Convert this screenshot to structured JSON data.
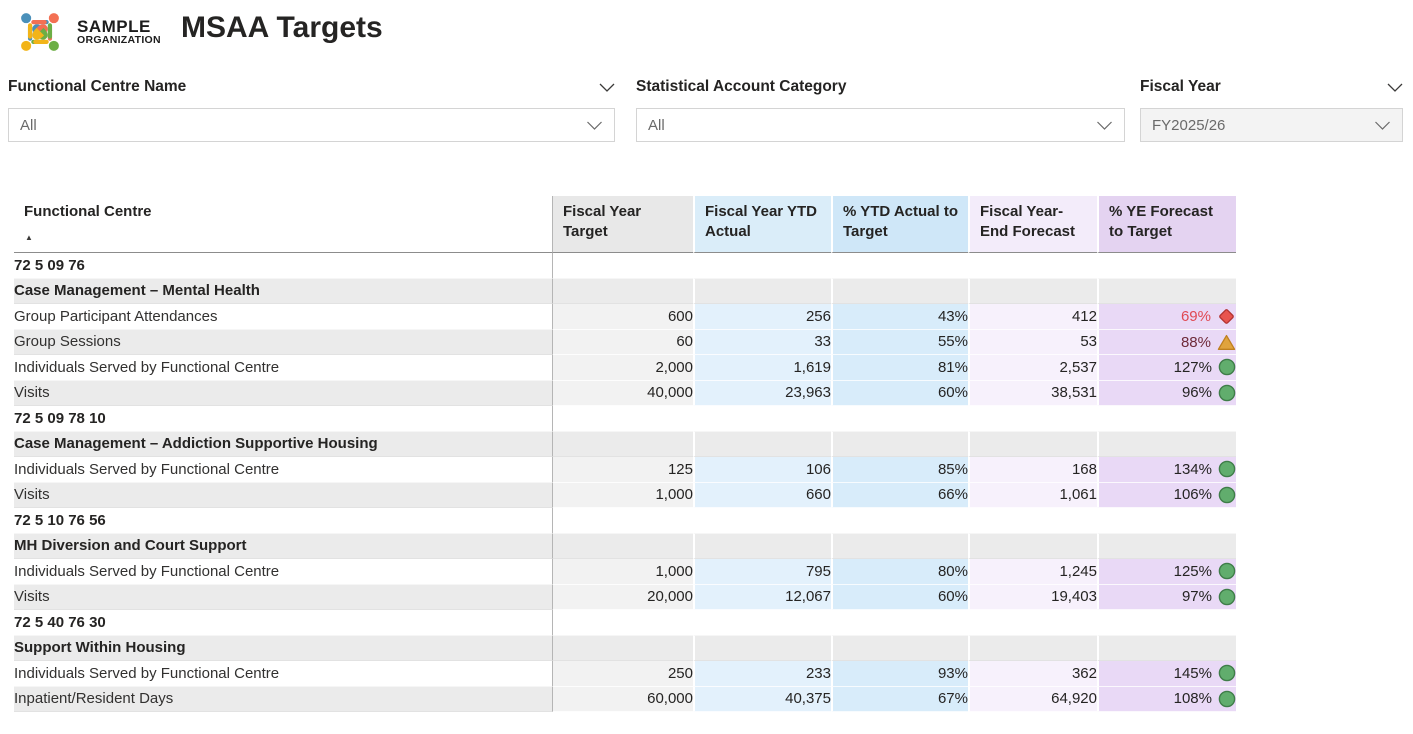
{
  "header": {
    "logo": {
      "line1": "SAMPLE",
      "line2": "ORGANIZATION"
    },
    "title": "MSAA Targets"
  },
  "filters": [
    {
      "label": "Functional Centre Name",
      "value": "All",
      "label_chevron": true,
      "selected": false
    },
    {
      "label": "Statistical Account Category",
      "value": "All",
      "label_chevron": false,
      "selected": false
    },
    {
      "label": "Fiscal Year",
      "value": "FY2025/26",
      "label_chevron": true,
      "selected": true
    }
  ],
  "table": {
    "sort_icon": "▲",
    "columns": [
      {
        "label": "Functional Centre",
        "header_bg": "#ffffff",
        "cell_bg": ""
      },
      {
        "label": "Fiscal Year Target",
        "header_bg": "#e8e8e8",
        "cell_bg": "#f2f2f2"
      },
      {
        "label": "Fiscal Year YTD Actual",
        "header_bg": "#daedf9",
        "cell_bg": "#e3f1fc"
      },
      {
        "label": "% YTD Actual to Target",
        "header_bg": "#cfe7f8",
        "cell_bg": "#d8ecfa"
      },
      {
        "label": "Fiscal Year-End Forecast",
        "header_bg": "#f3ecfa",
        "cell_bg": "#f7f1fc"
      },
      {
        "label": "% YE Forecast to Target",
        "header_bg": "#e4d3f1",
        "cell_bg": "#e9d9f6"
      }
    ],
    "rows": [
      {
        "level": 1,
        "label": "72 5 09 76"
      },
      {
        "level": 2,
        "label": "Case Management – Mental Health"
      },
      {
        "level": 3,
        "label": "Group Participant Attendances",
        "values": [
          "600",
          "256",
          "43%",
          "412",
          "69%"
        ],
        "kpi": "red-diamond",
        "pct_style": "red"
      },
      {
        "level": 3,
        "label": "Group Sessions",
        "values": [
          "60",
          "33",
          "55%",
          "53",
          "88%"
        ],
        "kpi": "amber-triangle",
        "pct_style": "maroon"
      },
      {
        "level": 3,
        "label": "Individuals Served by Functional Centre",
        "values": [
          "2,000",
          "1,619",
          "81%",
          "2,537",
          "127%"
        ],
        "kpi": "green-circle",
        "pct_style": "default"
      },
      {
        "level": 3,
        "label": "Visits",
        "values": [
          "40,000",
          "23,963",
          "60%",
          "38,531",
          "96%"
        ],
        "kpi": "green-circle",
        "pct_style": "default"
      },
      {
        "level": 1,
        "label": "72 5 09 78 10"
      },
      {
        "level": 2,
        "label": "Case Management – Addiction Supportive Housing"
      },
      {
        "level": 3,
        "label": "Individuals Served by Functional Centre",
        "values": [
          "125",
          "106",
          "85%",
          "168",
          "134%"
        ],
        "kpi": "green-circle",
        "pct_style": "default"
      },
      {
        "level": 3,
        "label": "Visits",
        "values": [
          "1,000",
          "660",
          "66%",
          "1,061",
          "106%"
        ],
        "kpi": "green-circle",
        "pct_style": "default"
      },
      {
        "level": 1,
        "label": "72 5 10 76 56"
      },
      {
        "level": 2,
        "label": "MH Diversion and Court Support"
      },
      {
        "level": 3,
        "label": "Individuals Served by Functional Centre",
        "values": [
          "1,000",
          "795",
          "80%",
          "1,245",
          "125%"
        ],
        "kpi": "green-circle",
        "pct_style": "default"
      },
      {
        "level": 3,
        "label": "Visits",
        "values": [
          "20,000",
          "12,067",
          "60%",
          "19,403",
          "97%"
        ],
        "kpi": "green-circle",
        "pct_style": "default"
      },
      {
        "level": 1,
        "label": "72 5 40 76 30"
      },
      {
        "level": 2,
        "label": "Support Within Housing"
      },
      {
        "level": 3,
        "label": "Individuals Served by Functional Centre",
        "values": [
          "250",
          "233",
          "93%",
          "362",
          "145%"
        ],
        "kpi": "green-circle",
        "pct_style": "default"
      },
      {
        "level": 3,
        "label": "Inpatient/Resident Days",
        "values": [
          "60,000",
          "40,375",
          "67%",
          "64,920",
          "108%"
        ],
        "kpi": "green-circle",
        "pct_style": "default"
      }
    ]
  },
  "colors": {
    "row_alt": "#ebebeb",
    "row_white": "#ffffff",
    "divider": "#b5b5b5",
    "logo_blue": "#4a90ba",
    "logo_orange": "#f37053",
    "logo_yellow": "#f2b418",
    "logo_green": "#6cae45",
    "kpi": {
      "red-diamond": {
        "fill": "#e8544f",
        "stroke": "#b23331"
      },
      "amber-triangle": {
        "fill": "#e0a33e",
        "stroke": "#bf801f"
      },
      "green-circle": {
        "fill": "#61ad6d",
        "stroke": "#3f7d49"
      }
    },
    "pct_text": {
      "red": "#e04953",
      "maroon": "#6e2a39",
      "default": "#252423"
    }
  }
}
